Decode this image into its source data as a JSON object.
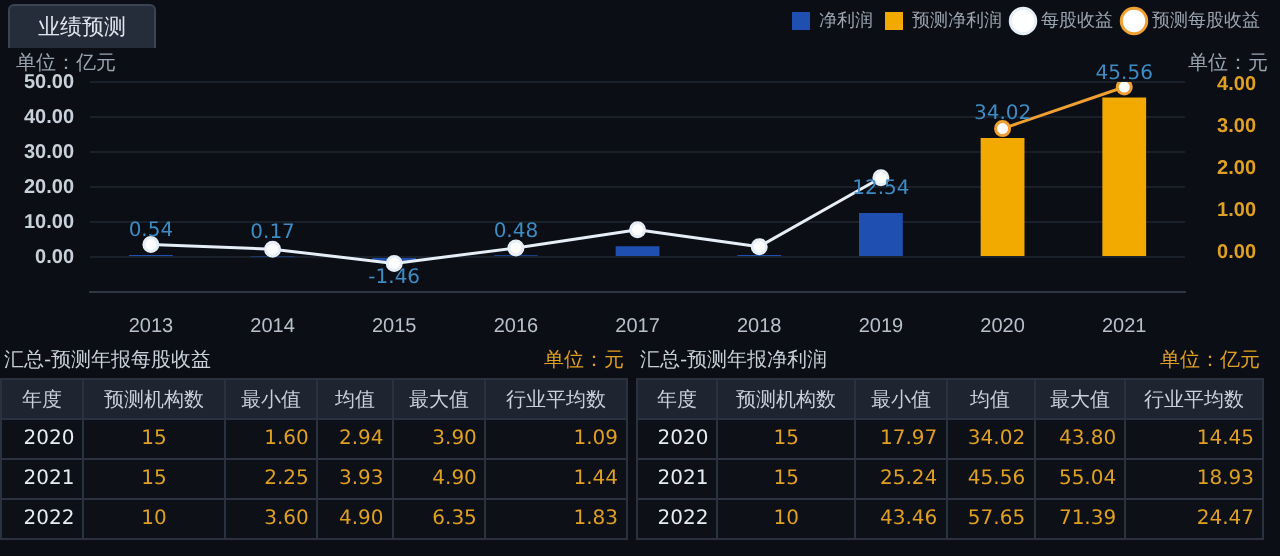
{
  "chart_data": [
    {
      "type": "bar",
      "title": "业绩预测",
      "ylabel": "单位：亿元",
      "y2label": "单位：元",
      "categories": [
        "2013",
        "2014",
        "2015",
        "2016",
        "2017",
        "2018",
        "2019",
        "2020",
        "2021"
      ],
      "series": [
        {
          "name": "净利润",
          "color": "#1f4fb0",
          "values": [
            0.54,
            0.17,
            -1.46,
            0.48,
            3.1,
            0.6,
            12.54,
            null,
            null
          ],
          "value_labels": [
            "0.54",
            "0.17",
            "-1.46",
            "0.48",
            null,
            null,
            "12.54",
            null,
            null
          ]
        },
        {
          "name": "预测净利润",
          "color": "#f2aa00",
          "values": [
            null,
            null,
            null,
            null,
            null,
            null,
            null,
            34.02,
            45.56
          ],
          "value_labels": [
            null,
            null,
            null,
            null,
            null,
            null,
            null,
            "34.02",
            "45.56"
          ]
        },
        {
          "name": "每股收益",
          "type": "line",
          "axis": "y2",
          "color": "#e6eef7",
          "values": [
            0.18,
            0.07,
            -0.27,
            0.1,
            0.53,
            0.13,
            1.77,
            null,
            null
          ]
        },
        {
          "name": "预测每股收益",
          "type": "line",
          "axis": "y2",
          "color": "#f0a030",
          "values": [
            null,
            null,
            null,
            null,
            null,
            null,
            null,
            2.94,
            3.93
          ]
        }
      ],
      "ylim": [
        -10,
        50
      ],
      "yticks": [
        {
          "value": 0,
          "label": "0.00"
        },
        {
          "value": 10,
          "label": "10.00"
        },
        {
          "value": 20,
          "label": "20.00"
        },
        {
          "value": 30,
          "label": "30.00"
        },
        {
          "value": 40,
          "label": "40.00"
        },
        {
          "value": 50,
          "label": "50.00"
        }
      ],
      "y2lim": [
        -0.95,
        4.05
      ],
      "y2ticks": [
        {
          "value": 0,
          "label": "0.00"
        },
        {
          "value": 1,
          "label": "1.00"
        },
        {
          "value": 2,
          "label": "2.00"
        },
        {
          "value": 3,
          "label": "3.00"
        },
        {
          "value": 4,
          "label": "4.00"
        }
      ],
      "marker": "circle",
      "grid": "y",
      "legend": "top right"
    },
    {
      "type": "other",
      "title": "汇总-预测年报每股收益",
      "annotations": [
        "单位：元"
      ],
      "categories": [
        "年度",
        "预测机构数",
        "最小值",
        "均值",
        "最大值",
        "行业平均数"
      ],
      "cells": [
        [
          "2020",
          "15",
          "1.60",
          "2.94",
          "3.90",
          "1.09"
        ],
        [
          "2021",
          "15",
          "2.25",
          "3.93",
          "4.90",
          "1.44"
        ],
        [
          "2022",
          "10",
          "3.60",
          "4.90",
          "6.35",
          "1.83"
        ]
      ]
    },
    {
      "type": "other",
      "title": "汇总-预测年报净利润",
      "annotations": [
        "单位：亿元"
      ],
      "categories": [
        "年度",
        "预测机构数",
        "最小值",
        "均值",
        "最大值",
        "行业平均数"
      ],
      "cells": [
        [
          "2020",
          "15",
          "17.97",
          "34.02",
          "43.80",
          "14.45"
        ],
        [
          "2021",
          "15",
          "25.24",
          "45.56",
          "55.04",
          "18.93"
        ],
        [
          "2022",
          "10",
          "43.46",
          "57.65",
          "71.39",
          "24.47"
        ]
      ]
    }
  ]
}
